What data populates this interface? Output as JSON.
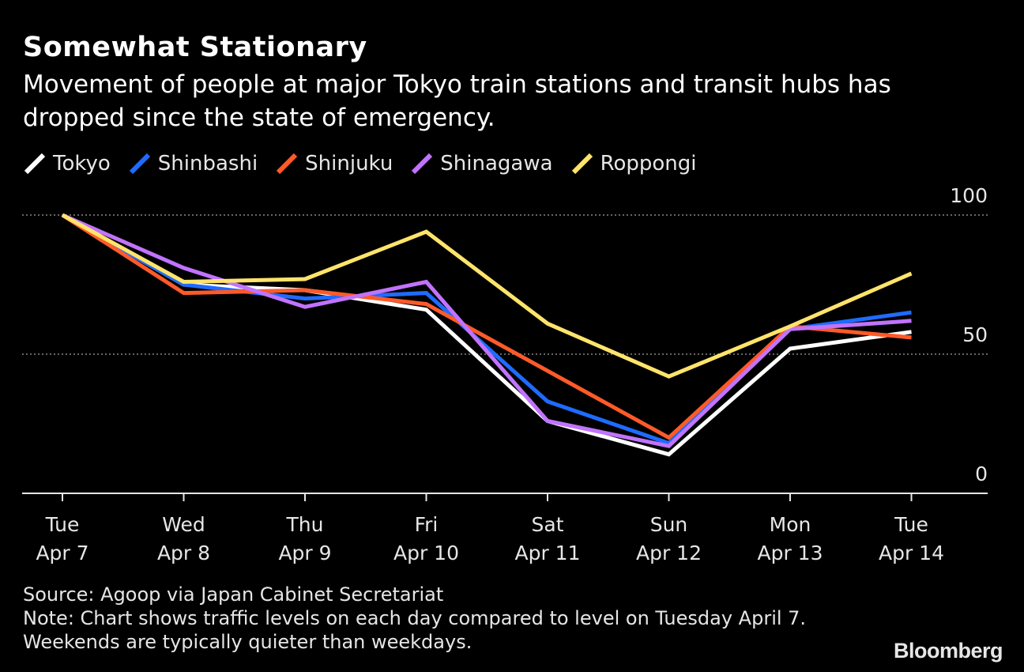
{
  "header": {
    "title": "Somewhat Stationary",
    "subtitle": "Movement of people at major Tokyo train stations and transit hubs has dropped since the state of emergency."
  },
  "colors": {
    "background": "#000000",
    "Tokyo": "#ffffff",
    "Shinbashi": "#1f6bff",
    "Shinjuku": "#ff5a29",
    "Shinagawa": "#c173ff",
    "Roppongi": "#ffe46b",
    "grid": "#888888"
  },
  "chart_data": {
    "type": "line",
    "title": "Somewhat Stationary",
    "subtitle": "Movement of people at major Tokyo train stations and transit hubs has dropped since the state of emergency.",
    "categories": [
      {
        "day": "Tue",
        "date": "Apr 7"
      },
      {
        "day": "Wed",
        "date": "Apr 8"
      },
      {
        "day": "Thu",
        "date": "Apr 9"
      },
      {
        "day": "Fri",
        "date": "Apr 10"
      },
      {
        "day": "Sat",
        "date": "Apr 11"
      },
      {
        "day": "Sun",
        "date": "Apr 12"
      },
      {
        "day": "Mon",
        "date": "Apr 13"
      },
      {
        "day": "Tue",
        "date": "Apr 14"
      }
    ],
    "series": [
      {
        "name": "Tokyo",
        "values": [
          100,
          75,
          73,
          66,
          26,
          14,
          52,
          58
        ]
      },
      {
        "name": "Shinbashi",
        "values": [
          100,
          75,
          70,
          72,
          33,
          18,
          59,
          65
        ]
      },
      {
        "name": "Shinjuku",
        "values": [
          100,
          72,
          73,
          68,
          44,
          20,
          60,
          56
        ]
      },
      {
        "name": "Shinagawa",
        "values": [
          100,
          81,
          67,
          76,
          26,
          17,
          59,
          62
        ]
      },
      {
        "name": "Roppongi",
        "values": [
          100,
          76,
          77,
          94,
          61,
          42,
          60,
          79
        ]
      }
    ],
    "ylim": [
      0,
      100
    ],
    "yticks": [
      0,
      50,
      100
    ],
    "grid": true,
    "legend_position": "top-left",
    "xlabel": "",
    "ylabel": ""
  },
  "footer": {
    "source": "Source: Agoop via Japan Cabinet Secretariat",
    "note": "Note: Chart shows traffic levels on each day compared to level on Tuesday April 7. Weekends are typically quieter than weekdays."
  },
  "logo": "Bloomberg"
}
